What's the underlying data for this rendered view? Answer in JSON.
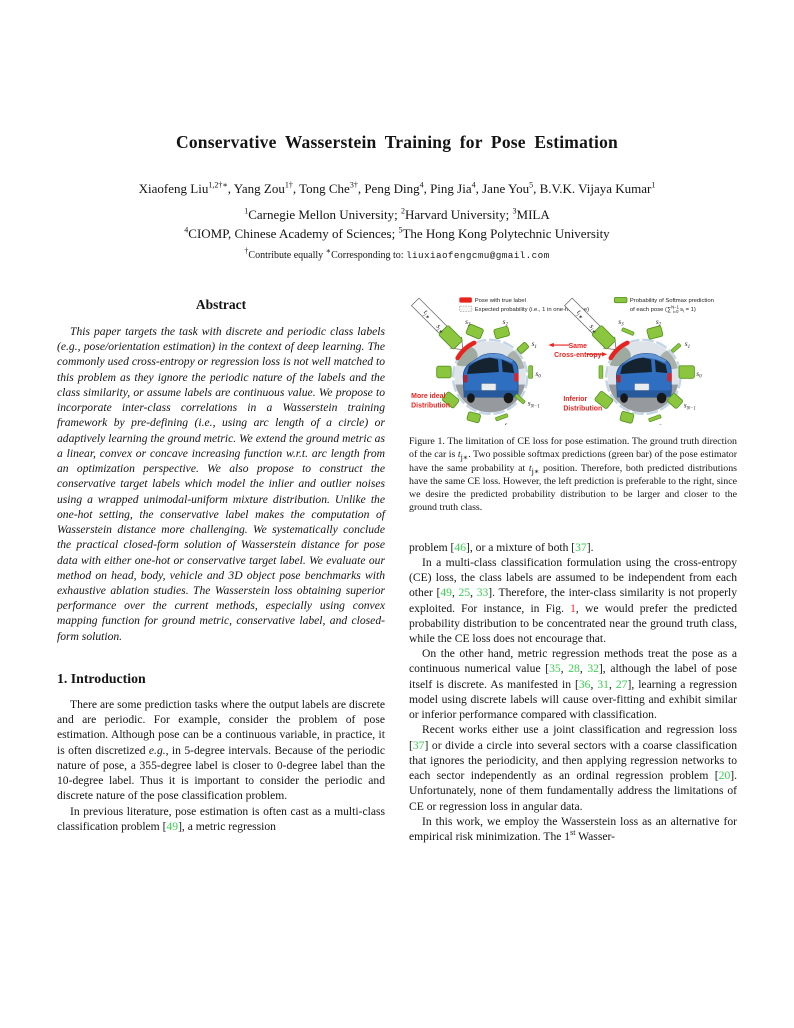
{
  "paper": {
    "title": "Conservative Wasserstein Training for Pose Estimation",
    "authors_rich": "Xiaofeng Liu^{1,2†∗},  Yang Zou^{1†},  Tong Che^{3†},  Peng Ding^{4},  Ping Jia^{4},  Jane You^{5},  B.V.K. Vijaya Kumar^{1}",
    "affiliation_line1_rich": "^{1}Carnegie Mellon University;  ^{2}Harvard University;  ^{3}MILA",
    "affiliation_line2_rich": "^{4}CIOMP, Chinese Academy of Sciences;  ^{5}The Hong Kong Polytechnic University",
    "footnote_rich": "^{†}Contribute equally  ^{∗}Corresponding to: ",
    "email": "liuxiaofengcmu@gmail.com",
    "abstract_heading": "Abstract",
    "abstract_paragraphs": [
      "This paper targets the task with discrete and periodic class labels (⟪e.g.⟫, pose/orientation estimation) in the context of deep learning. The commonly used cross-entropy or regression loss is not well matched to this problem as they ignore the periodic nature of the labels and the class similarity, or assume labels are continuous value. We propose to incorporate inter-class correlations in a Wasserstein training framework by pre-defining (⟪i.e.⟫, using arc length of a circle) or adaptively learning the ground metric. We extend the ground metric as a linear, convex or concave increasing function ⟪w.r.t.⟫ arc length from an optimization perspective. We also propose to construct the conservative target labels which model the inlier and outlier noises using a wrapped unimodal-uniform mixture distribution. Unlike the one-hot setting, the conservative label makes the computation of Wasserstein distance more challenging. We systematically conclude the practical closed-form solution of Wasserstein distance for pose data with either one-hot or conservative target label. We evaluate our method on head, body, vehicle and 3D object pose benchmarks with exhaustive ablation studies. The Wasserstein loss obtaining superior performance over the current methods, especially using convex mapping function for ground metric, conservative label, and closed-form solution."
    ],
    "intro_heading": "1. Introduction",
    "intro_paragraphs": [
      "There are some prediction tasks where the output labels are discrete and are periodic. For example, consider the problem of pose estimation. Although pose can be a continuous variable, in practice, it is often discretized ⟪e.g.⟫, in 5-degree intervals. Because of the periodic nature of pose, a 355-degree label is closer to 0-degree label than the 10-degree label. Thus it is important to consider the periodic and discrete nature of the pose classification problem.",
      "In previous literature, pose estimation is often cast as a multi-class classification problem [«49»], a metric regression"
    ],
    "right_paragraphs": [
      "problem [«46»], or a mixture of both [«37»].",
      "In a multi-class classification formulation using the cross-entropy (CE) loss, the class labels are assumed to be independent from each other [«49», «25», «33»]. Therefore, the inter-class similarity is not properly exploited. For instance, in Fig. ‹1›, we would prefer the predicted probability distribution to be concentrated near the ground truth class, while the CE loss does not encourage that.",
      "On the other hand, metric regression methods treat the pose as a continuous numerical value [«35», «28», «32»], although the label of pose itself is discrete. As manifested in [«36», «31», «27»], learning a regression model using discrete labels will cause over-fitting and exhibit similar or inferior performance compared with classification.",
      "Recent works either use a joint classification and regression loss [«37»] or divide a circle into several sectors with a coarse classification that ignores the periodicity, and then applying regression networks to each sector independently as an ordinal regression problem [«20»]. Unfortunately, none of them fundamentally address the limitations of CE or regression loss in angular data.",
      "In this work, we employ the Wasserstein loss as an alternative for empirical risk minimization. The 1^{st} Wasser-"
    ],
    "figure": {
      "caption_rich": "Figure 1. The limitation of CE loss for pose estimation.  The ground truth direction of the car is ⟪t⟫_{j∗}.  Two possible softmax predictions (green bar) of the pose estimator have the same probability at ⟪t⟫_{j∗} position. Therefore, both predicted distributions have the same CE loss. However, the left prediction is preferable to the right, since we desire the predicted probability distribution to be larger and closer to the ground truth class.",
      "legend": {
        "true_label": "Pose with true label",
        "expected": "Expected probability (i.e., 1 in one-hot case)",
        "softmax_line1": "Probability of Softmax prediction",
        "softmax_line2_open": "of each pose (∑",
        "softmax_sup": "N−1",
        "softmax_sub": "i=0",
        "softmax_s": " s",
        "softmax_s_sub": "i",
        "softmax_close": " = 1)"
      },
      "annotations": {
        "same1": "Same",
        "same2": "Cross-entropy",
        "left1": "More ideal",
        "left2": "Distribution",
        "right1": "Inferior",
        "right2": "Distribution"
      },
      "bar_labels": {
        "s0": {
          "base": "s",
          "sub": "0"
        },
        "s1": {
          "base": "s",
          "sub": "1"
        },
        "s2": {
          "base": "s",
          "sub": "2"
        },
        "s3": {
          "base": "s",
          "sub": "3"
        },
        "sn1": {
          "base": "s",
          "sub": "N−1"
        },
        "sn2": {
          "base": "s",
          "sub": "N−2"
        },
        "tj": {
          "base": "t",
          "sub": "j∗"
        },
        "sj": {
          "base": "s",
          "sub": "j∗"
        }
      }
    },
    "colors": {
      "citation_green": "#3bd052",
      "figure_ref_red": "#ff2a2a",
      "bar_green": "#8CC63F",
      "bar_green_stroke": "#55941f",
      "annotation_red": "#e8231f",
      "car_blue": "#2f6fc1"
    }
  }
}
